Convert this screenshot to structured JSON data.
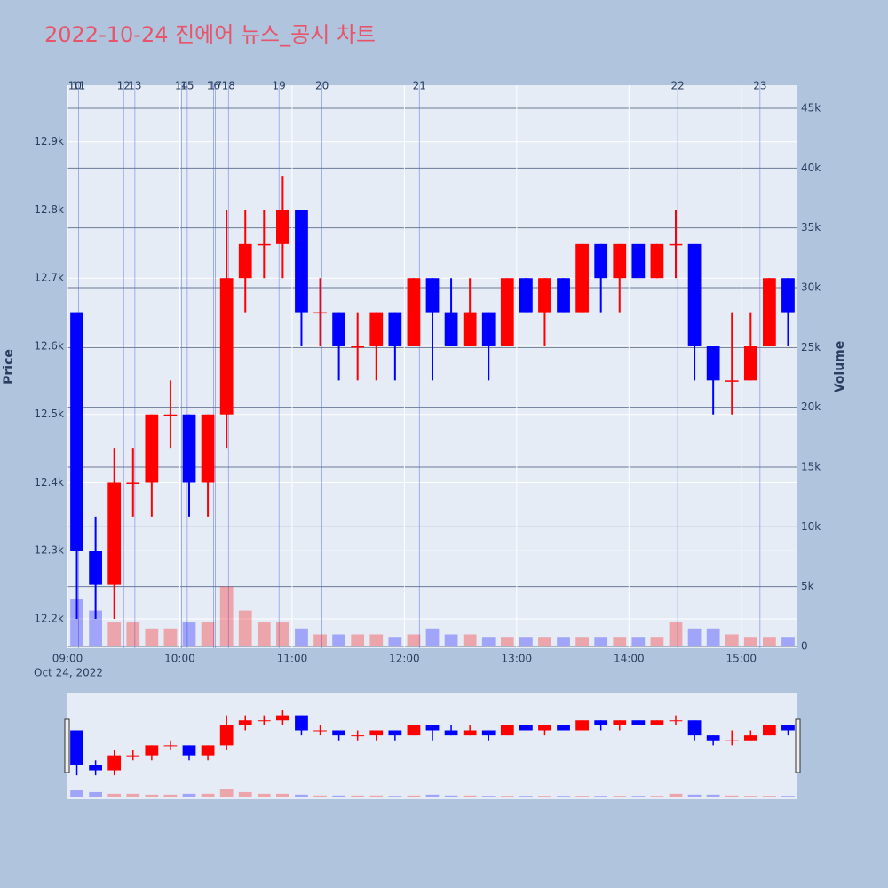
{
  "chart_data": {
    "type": "candlestick",
    "title": "2022-10-24 진에어 뉴스_공시 차트",
    "ylabel": "Price",
    "y2label": "Volume",
    "date_label": "Oct 24, 2022",
    "x": [
      "09:00",
      "09:10",
      "09:20",
      "09:30",
      "09:40",
      "09:50",
      "10:00",
      "10:10",
      "10:20",
      "10:30",
      "10:40",
      "10:50",
      "11:00",
      "11:10",
      "11:20",
      "11:30",
      "11:40",
      "11:50",
      "12:00",
      "12:10",
      "12:20",
      "12:30",
      "12:40",
      "12:50",
      "13:00",
      "13:10",
      "13:20",
      "13:30",
      "13:40",
      "13:50",
      "14:00",
      "14:10",
      "14:20",
      "14:30",
      "14:40",
      "14:50",
      "15:00",
      "15:10",
      "15:20"
    ],
    "open": [
      12650,
      12300,
      12250,
      12400,
      12400,
      12500,
      12500,
      12400,
      12500,
      12700,
      12750,
      12750,
      12800,
      12650,
      12650,
      12600,
      12600,
      12650,
      12600,
      12700,
      12650,
      12600,
      12650,
      12600,
      12700,
      12650,
      12700,
      12650,
      12750,
      12700,
      12750,
      12700,
      12750,
      12750,
      12600,
      12550,
      12550,
      12600,
      12700
    ],
    "high": [
      12650,
      12350,
      12450,
      12450,
      12500,
      12550,
      12500,
      12500,
      12800,
      12800,
      12800,
      12850,
      12800,
      12700,
      12650,
      12650,
      12650,
      12650,
      12700,
      12700,
      12700,
      12700,
      12650,
      12700,
      12700,
      12700,
      12700,
      12750,
      12750,
      12750,
      12750,
      12750,
      12800,
      12750,
      12600,
      12650,
      12650,
      12700,
      12700
    ],
    "low": [
      12200,
      12200,
      12200,
      12350,
      12350,
      12450,
      12350,
      12350,
      12450,
      12650,
      12700,
      12700,
      12600,
      12600,
      12550,
      12550,
      12550,
      12550,
      12600,
      12550,
      12600,
      12600,
      12550,
      12600,
      12650,
      12600,
      12650,
      12650,
      12650,
      12650,
      12700,
      12700,
      12700,
      12550,
      12500,
      12500,
      12550,
      12600,
      12600
    ],
    "close": [
      12300,
      12250,
      12400,
      12400,
      12500,
      12500,
      12400,
      12500,
      12700,
      12750,
      12750,
      12800,
      12650,
      12650,
      12600,
      12600,
      12650,
      12600,
      12700,
      12650,
      12600,
      12650,
      12600,
      12700,
      12650,
      12700,
      12650,
      12750,
      12700,
      12750,
      12700,
      12750,
      12750,
      12600,
      12550,
      12550,
      12600,
      12700,
      12650
    ],
    "volume": [
      4000,
      3000,
      2000,
      2000,
      1500,
      1500,
      2000,
      2000,
      5000,
      3000,
      2000,
      2000,
      1500,
      1000,
      1000,
      1000,
      1000,
      800,
      1000,
      1500,
      1000,
      1000,
      800,
      800,
      800,
      800,
      800,
      800,
      800,
      800,
      800,
      800,
      2000,
      1500,
      1500,
      1000,
      800,
      800,
      800
    ],
    "increasing_color": "#ff0000",
    "decreasing_color": "#0000ff",
    "xlim": [
      "09:00",
      "15:30"
    ],
    "xticks": [
      "09:00",
      "10:00",
      "11:00",
      "12:00",
      "13:00",
      "14:00",
      "15:00"
    ],
    "ylim": [
      12157,
      12983
    ],
    "yticks": [
      {
        "value": 12200,
        "label": "12.2k"
      },
      {
        "value": 12300,
        "label": "12.3k"
      },
      {
        "value": 12400,
        "label": "12.4k"
      },
      {
        "value": 12500,
        "label": "12.5k"
      },
      {
        "value": 12600,
        "label": "12.6k"
      },
      {
        "value": 12700,
        "label": "12.7k"
      },
      {
        "value": 12800,
        "label": "12.8k"
      },
      {
        "value": 12900,
        "label": "12.9k"
      }
    ],
    "y2lim": [
      -150,
      46930
    ],
    "y2ticks": [
      0,
      {
        "value": 5000,
        "label": "5k"
      },
      {
        "value": 10000,
        "label": "10k"
      },
      {
        "value": 15000,
        "label": "15k"
      },
      {
        "value": 20000,
        "label": "20k"
      },
      {
        "value": 25000,
        "label": "25k"
      },
      {
        "value": 30000,
        "label": "30k"
      },
      {
        "value": 35000,
        "label": "35k"
      },
      {
        "value": 40000,
        "label": "40k"
      },
      {
        "value": 45000,
        "label": "45k"
      }
    ],
    "news": {
      "x": [
        "09:04",
        "09:06",
        "09:30",
        "09:36",
        "10:01",
        "10:04",
        "10:18",
        "10:19",
        "10:26",
        "10:53",
        "11:16",
        "12:08",
        "14:26",
        "15:10"
      ],
      "labels": [
        "10",
        "11",
        "12",
        "13",
        "14",
        "15",
        "16",
        "17",
        "18",
        "19",
        "20",
        "21",
        "22",
        "23"
      ]
    },
    "rangeslider": true
  }
}
